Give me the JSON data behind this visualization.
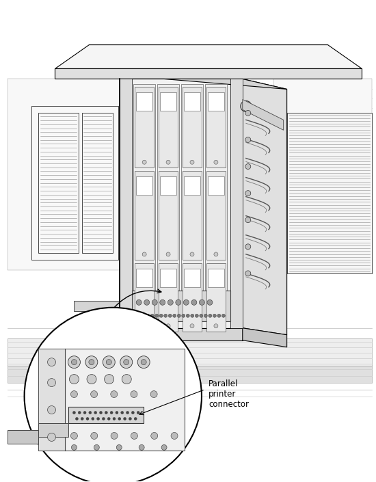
{
  "title": "",
  "background_color": "#ffffff",
  "fig_width": 5.5,
  "fig_height": 7.05,
  "dpi": 100,
  "annotation_text": "Parallel\nprinter\nconnector",
  "line_color": "#000000",
  "line_color_light": "#888888",
  "fill_white": "#ffffff",
  "fill_light": "#f0f0f0",
  "fill_mid": "#d8d8d8",
  "fill_dark": "#b0b0b0",
  "fill_darker": "#888888"
}
